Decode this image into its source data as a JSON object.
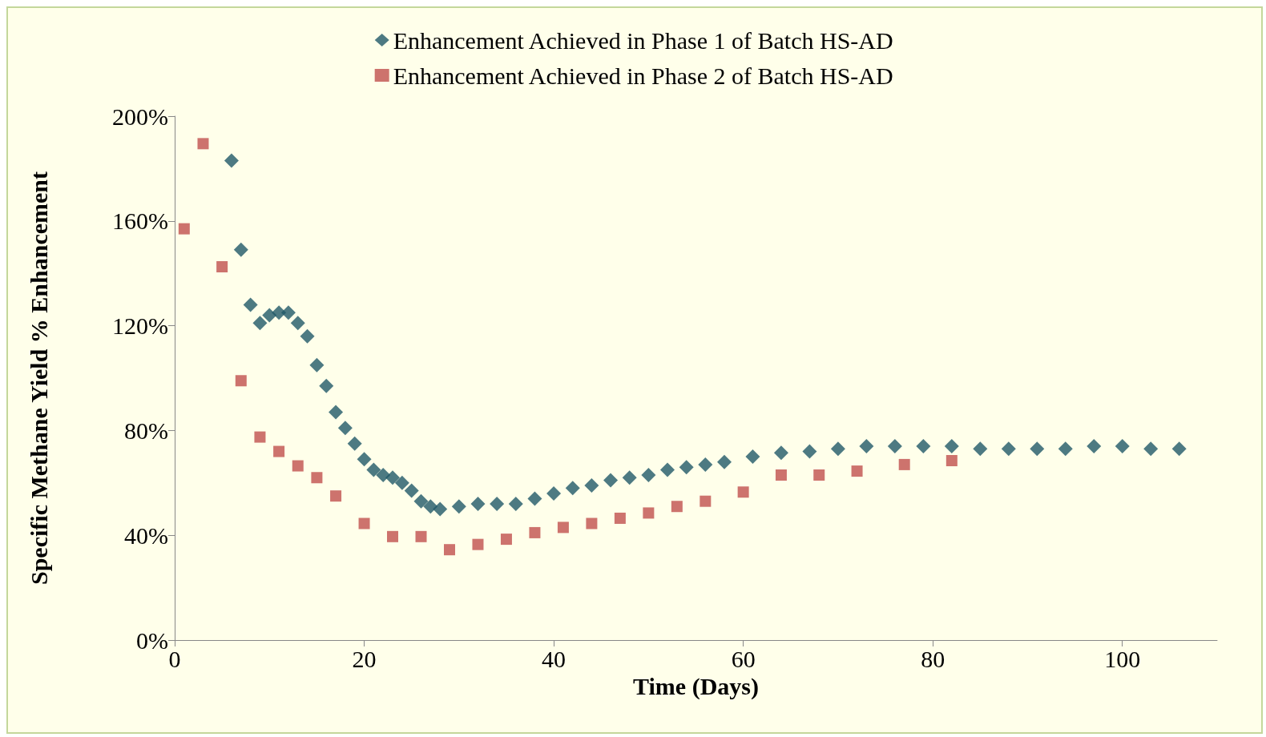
{
  "chart_data": {
    "type": "scatter",
    "xlabel": "Time (Days)",
    "ylabel": "Specific Methane Yield % Enhancement",
    "xlim": [
      0,
      110
    ],
    "xticks": [
      0,
      20,
      40,
      60,
      80,
      100
    ],
    "ylim": [
      0,
      200
    ],
    "yticks": [
      {
        "value": 0,
        "label": "0%"
      },
      {
        "value": 40,
        "label": "40%"
      },
      {
        "value": 80,
        "label": "80%"
      },
      {
        "value": 120,
        "label": "120%"
      },
      {
        "value": 160,
        "label": "160%"
      },
      {
        "value": 200,
        "label": "200%"
      }
    ],
    "grid": false,
    "legend": "top",
    "series": [
      {
        "name": "Enhancement Achieved in Phase 1 of Batch HS-AD",
        "color": "#215968",
        "marker": "diamond",
        "x": [
          6,
          7,
          8,
          9,
          10,
          11,
          12,
          13,
          14,
          15,
          16,
          17,
          18,
          19,
          20,
          21,
          22,
          23,
          24,
          25,
          26,
          27,
          28,
          30,
          32,
          34,
          36,
          38,
          40,
          42,
          44,
          46,
          48,
          50,
          52,
          54,
          56,
          58,
          61,
          64,
          67,
          70,
          73,
          76,
          79,
          82,
          85,
          88,
          91,
          94,
          97,
          100,
          103,
          106
        ],
        "values": [
          183,
          149,
          128,
          121,
          124,
          125,
          125,
          121,
          116,
          105,
          97,
          87,
          81,
          75,
          69,
          65,
          63,
          62,
          60,
          57,
          53,
          51,
          50,
          51,
          52,
          52,
          52,
          54,
          56,
          58,
          59,
          61,
          62,
          63,
          65,
          66,
          67,
          68,
          70,
          71.5,
          72,
          73,
          74,
          74,
          74,
          74,
          73,
          73,
          73,
          73,
          74,
          74,
          73,
          73
        ]
      },
      {
        "name": "Enhancement Achieved in Phase 2 of Batch HS-AD",
        "color": "#c0504d",
        "marker": "square",
        "x": [
          1,
          3,
          5,
          7,
          9,
          11,
          13,
          15,
          17,
          20,
          23,
          26,
          29,
          32,
          35,
          38,
          41,
          44,
          47,
          50,
          53,
          56,
          60,
          64,
          68,
          72,
          77,
          82
        ],
        "values": [
          157,
          189.5,
          142.5,
          99,
          77.5,
          72,
          66.5,
          62,
          55,
          44.5,
          39.5,
          39.5,
          34.5,
          36.5,
          38.5,
          41,
          43,
          44.5,
          46.5,
          48.5,
          51,
          53,
          56.5,
          63,
          63,
          64.5,
          67,
          68.5
        ]
      }
    ]
  }
}
